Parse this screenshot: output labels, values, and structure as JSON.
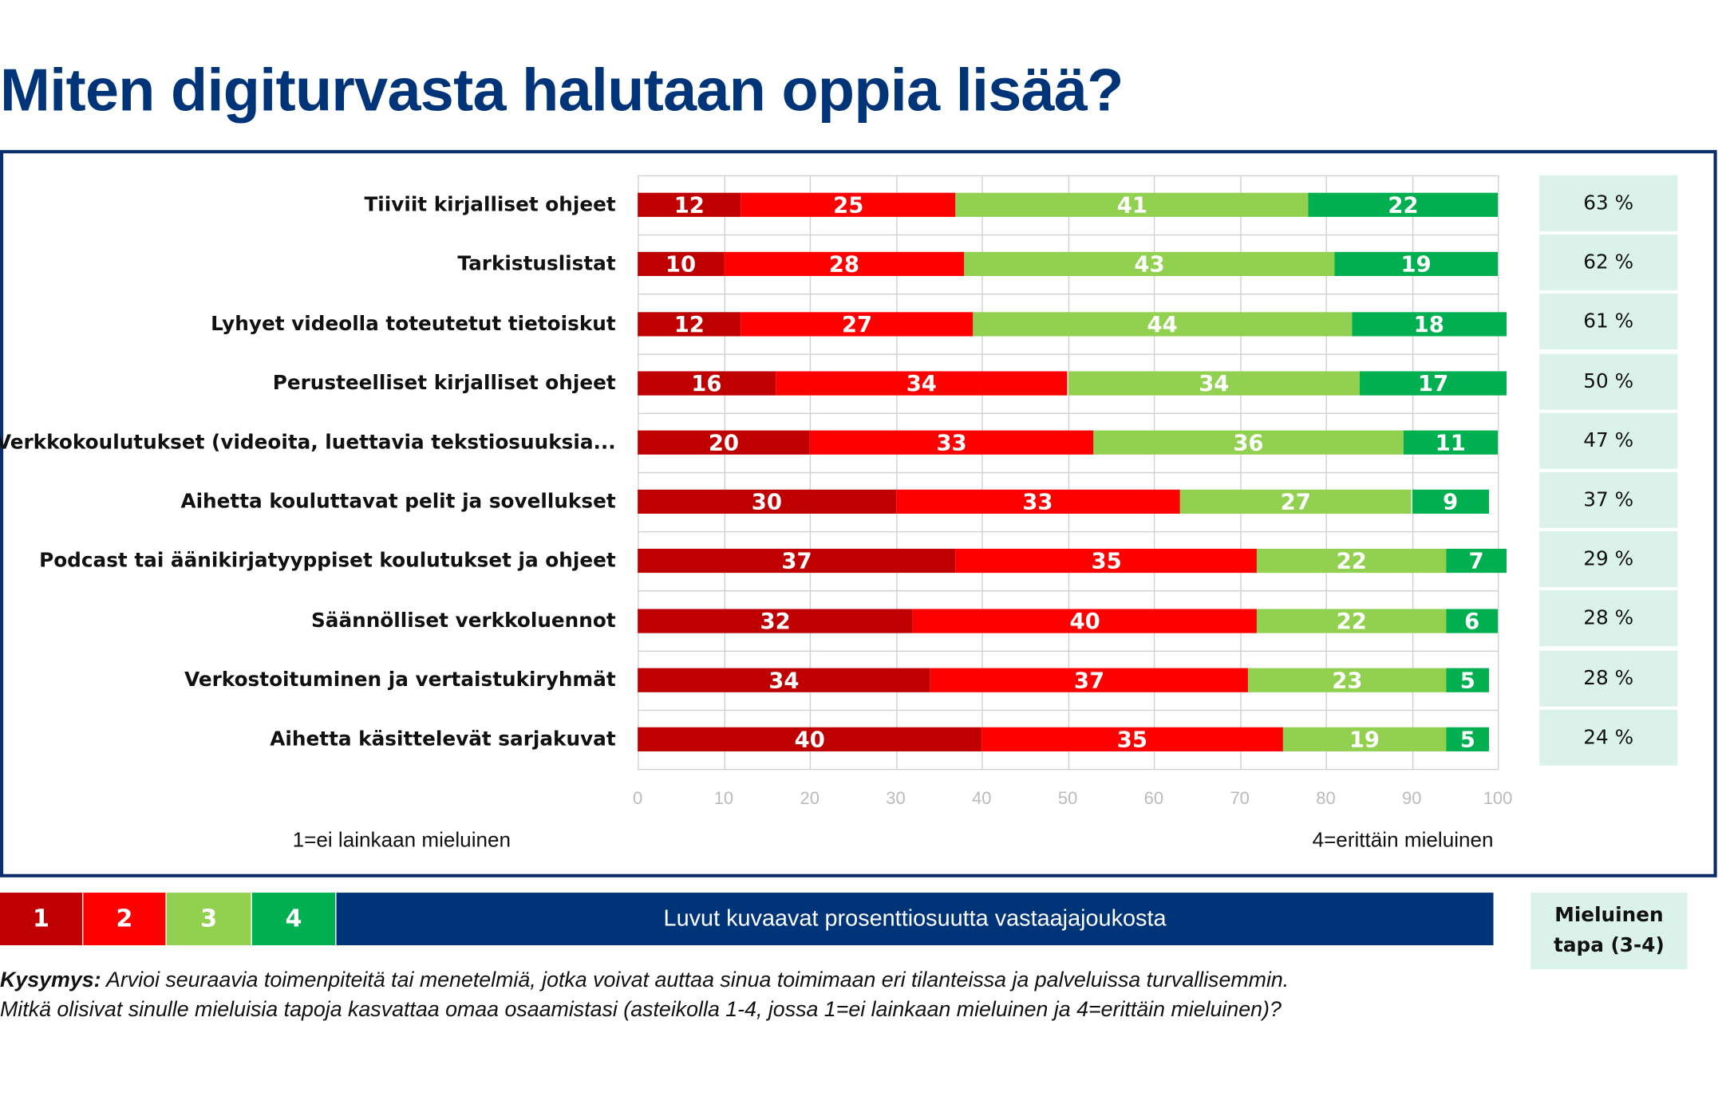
{
  "title": "Miten digiturvasta halutaan oppia lisää?",
  "chart_data": {
    "type": "bar",
    "orientation": "horizontal",
    "stacked": true,
    "categories": [
      "Tiiviit kirjalliset ohjeet",
      "Tarkistuslistat",
      "Lyhyet videolla toteutetut tietoiskut",
      "Perusteelliset kirjalliset ohjeet",
      "Verkkokoulutukset (videoita, luettavia tekstiosuuksia...",
      "Aihetta kouluttavat pelit ja sovellukset",
      "Podcast tai äänikirjatyyppiset koulutukset ja ohjeet",
      "Säännölliset verkkoluennot",
      "Verkostoituminen ja vertaistukiryhmät",
      "Aihetta käsittelevät sarjakuvat"
    ],
    "series": [
      {
        "name": "1",
        "color": "#c00000",
        "values": [
          12,
          10,
          12,
          16,
          20,
          30,
          37,
          32,
          34,
          40
        ]
      },
      {
        "name": "2",
        "color": "#ff0000",
        "values": [
          25,
          28,
          27,
          34,
          33,
          33,
          35,
          40,
          37,
          35
        ]
      },
      {
        "name": "3",
        "color": "#92d050",
        "values": [
          41,
          43,
          44,
          34,
          36,
          27,
          22,
          22,
          23,
          19
        ]
      },
      {
        "name": "4",
        "color": "#00b050",
        "values": [
          22,
          19,
          18,
          17,
          11,
          9,
          7,
          6,
          5,
          5
        ]
      }
    ],
    "xlim": [
      0,
      100
    ],
    "xticks": [
      "0",
      "10",
      "20",
      "30",
      "40",
      "50",
      "60",
      "70",
      "80",
      "90",
      "100"
    ],
    "grid": true,
    "mieluinen_tapa": [
      "63 %",
      "62 %",
      "61 %",
      "50 %",
      "47 %",
      "37 %",
      "29 %",
      "28 %",
      "28 %",
      "24 %"
    ]
  },
  "scale_notes": {
    "low": "1=ei lainkaan mieluinen",
    "high": "4=erittäin mieluinen"
  },
  "legend": {
    "items": [
      "1",
      "2",
      "3",
      "4"
    ],
    "note": "Luvut kuvaavat prosenttiosuutta vastaajajoukosta",
    "mieluinen_line1": "Mieluinen",
    "mieluinen_line2": "tapa (3-4)"
  },
  "question": {
    "label": "Kysymys:",
    "line1": " Arvioi seuraavia toimenpiteitä tai menetelmiä, jotka voivat auttaa sinua toimimaan eri tilanteissa ja palveluissa turvallisemmin.",
    "line2": "Mitkä olisivat sinulle mieluisia tapoja kasvattaa omaa osaamistasi (asteikolla 1-4, jossa 1=ei lainkaan mieluinen ja 4=erittäin mieluinen)?"
  }
}
